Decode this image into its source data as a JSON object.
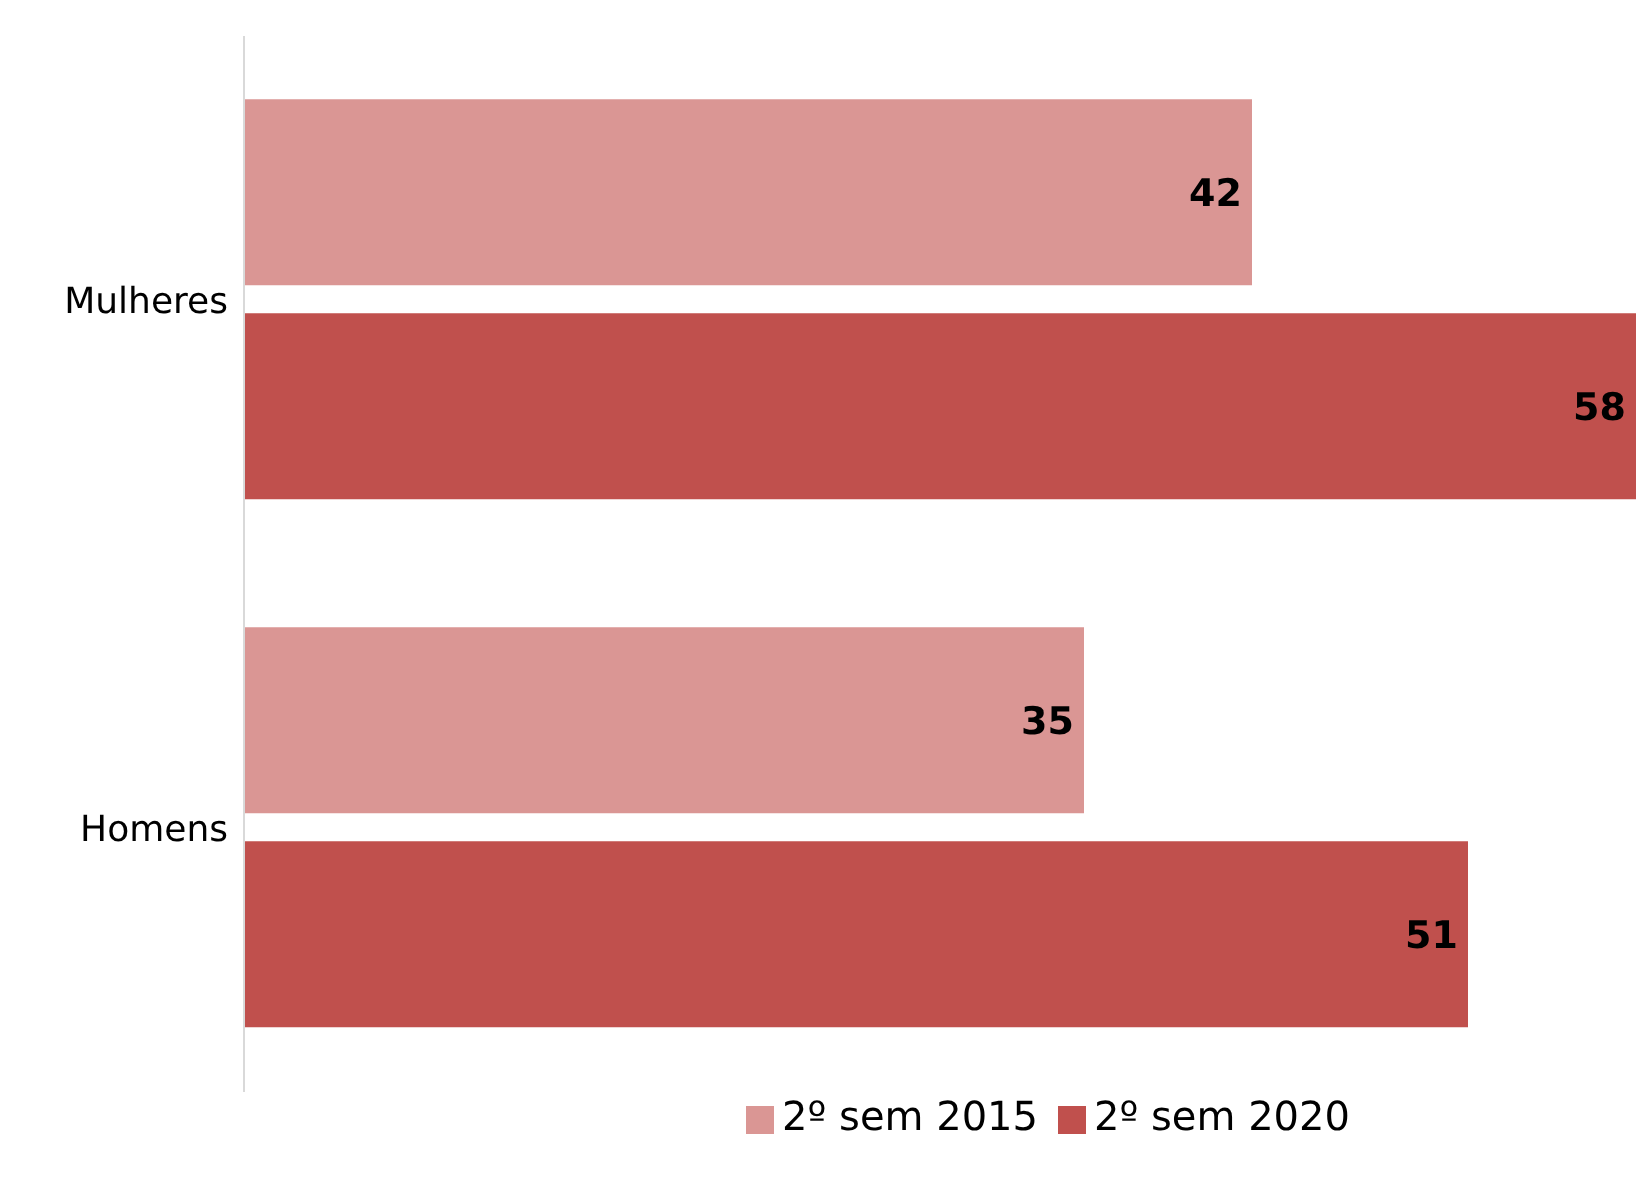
{
  "chart_data": {
    "type": "bar",
    "orientation": "horizontal",
    "categories": [
      "Mulheres",
      "Homens"
    ],
    "series": [
      {
        "name": "2º sem 2015",
        "color": "#da9694",
        "values": [
          42,
          35
        ]
      },
      {
        "name": "2º sem 2020",
        "color": "#c0504d",
        "values": [
          58,
          51
        ]
      }
    ],
    "data_labels": true,
    "legend": "bottom",
    "grid": false
  }
}
